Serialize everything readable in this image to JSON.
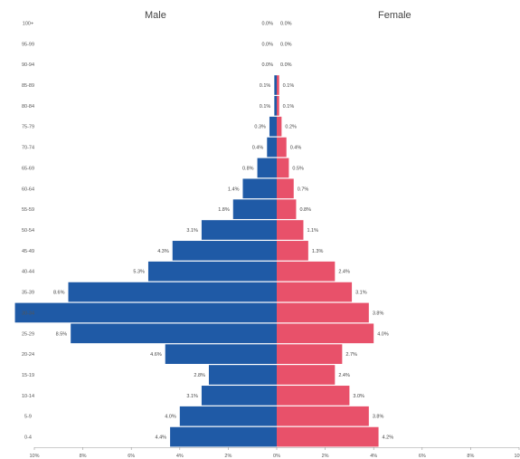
{
  "chart_data": {
    "type": "bar",
    "orientation": "horizontal",
    "subtype": "population-pyramid",
    "categories": [
      "0-4",
      "5-9",
      "10-14",
      "15-19",
      "20-24",
      "25-29",
      "30-34",
      "35-39",
      "40-44",
      "45-49",
      "50-54",
      "55-59",
      "60-64",
      "65-69",
      "70-74",
      "75-79",
      "80-84",
      "85-89",
      "90-94",
      "95-99",
      "100+"
    ],
    "series": [
      {
        "name": "Male",
        "color": "#1f5aa6",
        "values": [
          4.4,
          4.0,
          3.1,
          2.8,
          4.6,
          8.5,
          10.8,
          8.6,
          5.3,
          4.3,
          3.1,
          1.8,
          1.4,
          0.8,
          0.4,
          0.3,
          0.1,
          0.1,
          0.0,
          0.0,
          0.0
        ],
        "labels": [
          "4.4%",
          "4.0%",
          "3.1%",
          "2.8%",
          "4.6%",
          "8.5%",
          "",
          "8.6%",
          "5.3%",
          "4.3%",
          "3.1%",
          "1.8%",
          "1.4%",
          "0.8%",
          "0.4%",
          "0.3%",
          "0.1%",
          "0.1%",
          "0.0%",
          "0.0%",
          "0.0%"
        ]
      },
      {
        "name": "Female",
        "color": "#e8516a",
        "values": [
          4.2,
          3.8,
          3.0,
          2.4,
          2.7,
          4.0,
          3.8,
          3.1,
          2.4,
          1.3,
          1.1,
          0.8,
          0.7,
          0.5,
          0.4,
          0.2,
          0.1,
          0.1,
          0.0,
          0.0,
          0.0
        ],
        "labels": [
          "4.2%",
          "3.8%",
          "3.0%",
          "2.4%",
          "2.7%",
          "4.0%",
          "3.8%",
          "3.1%",
          "2.4%",
          "1.3%",
          "1.1%",
          "0.8%",
          "0.7%",
          "0.5%",
          "0.4%",
          "0.2%",
          "0.1%",
          "0.1%",
          "0.0%",
          "0.0%",
          "0.0%"
        ]
      }
    ],
    "xticks": [
      "10%",
      "8%",
      "6%",
      "4%",
      "2%",
      "0%",
      "2%",
      "4%",
      "6%",
      "8%",
      "10%"
    ],
    "xlim": [
      -10,
      10
    ],
    "grid": false
  }
}
